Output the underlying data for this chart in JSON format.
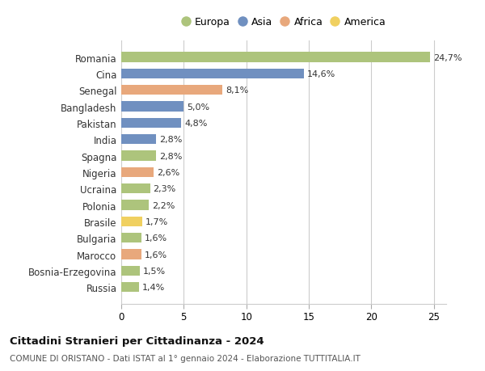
{
  "countries": [
    "Romania",
    "Cina",
    "Senegal",
    "Bangladesh",
    "Pakistan",
    "India",
    "Spagna",
    "Nigeria",
    "Ucraina",
    "Polonia",
    "Brasile",
    "Bulgaria",
    "Marocco",
    "Bosnia-Erzegovina",
    "Russia"
  ],
  "values": [
    24.7,
    14.6,
    8.1,
    5.0,
    4.8,
    2.8,
    2.8,
    2.6,
    2.3,
    2.2,
    1.7,
    1.6,
    1.6,
    1.5,
    1.4
  ],
  "labels": [
    "24,7%",
    "14,6%",
    "8,1%",
    "5,0%",
    "4,8%",
    "2,8%",
    "2,8%",
    "2,6%",
    "2,3%",
    "2,2%",
    "1,7%",
    "1,6%",
    "1,6%",
    "1,5%",
    "1,4%"
  ],
  "continents": [
    "Europa",
    "Asia",
    "Africa",
    "Asia",
    "Asia",
    "Asia",
    "Europa",
    "Africa",
    "Europa",
    "Europa",
    "America",
    "Europa",
    "Africa",
    "Europa",
    "Europa"
  ],
  "colors": {
    "Europa": "#adc47c",
    "Asia": "#7090c0",
    "Africa": "#e8a87c",
    "America": "#f0d060"
  },
  "legend_order": [
    "Europa",
    "Asia",
    "Africa",
    "America"
  ],
  "title": "Cittadini Stranieri per Cittadinanza - 2024",
  "subtitle": "COMUNE DI ORISTANO - Dati ISTAT al 1° gennaio 2024 - Elaborazione TUTTITALIA.IT",
  "xlim": [
    0,
    26
  ],
  "xticks": [
    0,
    5,
    10,
    15,
    20,
    25
  ],
  "bg_color": "#ffffff",
  "grid_color": "#cccccc"
}
